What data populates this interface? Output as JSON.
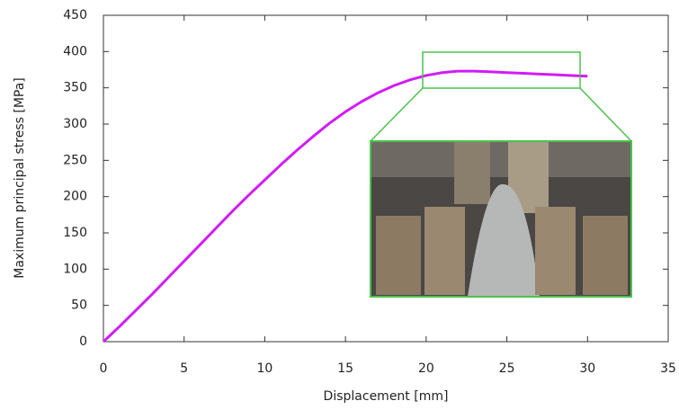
{
  "chart_data": {
    "type": "line",
    "x_label": "Displacement [mm]",
    "y_label": "Maximum principal stress [MPa]",
    "x": [
      0,
      1,
      2,
      3,
      4,
      5,
      6,
      7,
      8,
      9,
      10,
      11,
      12,
      13,
      14,
      15,
      16,
      17,
      18,
      19,
      20,
      21,
      22,
      23,
      24,
      25,
      26,
      27,
      28,
      29,
      30
    ],
    "series": [
      {
        "color": "#d11cf5",
        "values": [
          0,
          21,
          43,
          65,
          88,
          111,
          134,
          157,
          180,
          202,
          223,
          244,
          264,
          283,
          301,
          317,
          331,
          343,
          353,
          361,
          367,
          371,
          373,
          373,
          372,
          371,
          370,
          369,
          368,
          367,
          366
        ]
      }
    ],
    "xlim": [
      0,
      35
    ],
    "xticks": [
      0,
      5,
      10,
      15,
      20,
      25,
      30,
      35
    ],
    "ylim": [
      0,
      450
    ],
    "yticks": [
      0,
      50,
      100,
      150,
      200,
      250,
      300,
      350,
      400,
      450
    ]
  }
}
